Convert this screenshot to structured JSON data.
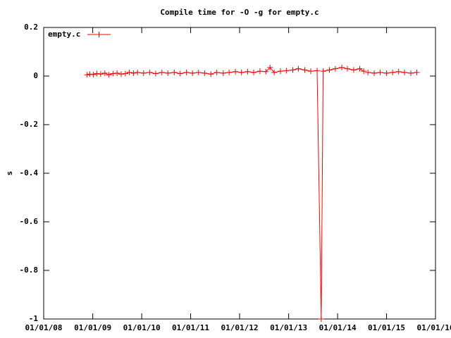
{
  "chart_data": {
    "type": "line",
    "title": "Compile time for -O -g for empty.c",
    "y_label": "s",
    "x": [
      "11/20/08",
      "12/10/08",
      "01/05/09",
      "02/01/09",
      "03/01/09",
      "04/01/09",
      "05/01/09",
      "06/01/09",
      "07/01/09",
      "08/01/09",
      "09/01/09",
      "10/01/09",
      "11/01/09",
      "12/01/09",
      "01/15/10",
      "03/01/10",
      "04/15/10",
      "06/01/10",
      "07/15/10",
      "09/01/10",
      "10/15/10",
      "12/01/10",
      "01/15/11",
      "03/01/11",
      "04/15/11",
      "06/01/11",
      "07/15/11",
      "09/01/11",
      "10/15/11",
      "12/01/11",
      "01/15/12",
      "03/01/12",
      "04/15/12",
      "06/01/12",
      "07/15/12",
      "08/15/12",
      "09/15/12",
      "11/01/12",
      "12/15/12",
      "02/01/13",
      "03/15/13",
      "05/01/13",
      "06/15/13",
      "08/01/13",
      "09/01/13",
      "09/15/13",
      "11/01/13",
      "12/15/13",
      "02/01/14",
      "03/15/14",
      "05/01/14",
      "06/15/14",
      "07/15/14",
      "08/01/14",
      "08/15/14",
      "10/01/14",
      "11/15/14",
      "01/01/15",
      "02/15/15",
      "04/01/15",
      "05/15/15",
      "07/01/15",
      "08/15/15"
    ],
    "series": [
      {
        "name": "empty.c",
        "color": "#ff0000",
        "values": [
          0.005,
          0.008,
          0.006,
          0.01,
          0.008,
          0.012,
          0.005,
          0.01,
          0.012,
          0.008,
          0.01,
          0.015,
          0.012,
          0.015,
          0.012,
          0.015,
          0.01,
          0.015,
          0.012,
          0.015,
          0.01,
          0.015,
          0.012,
          0.015,
          0.012,
          0.008,
          0.015,
          0.012,
          0.015,
          0.018,
          0.015,
          0.018,
          0.015,
          0.02,
          0.018,
          0.035,
          0.015,
          0.02,
          0.022,
          0.025,
          0.03,
          0.025,
          0.02,
          0.022,
          -1,
          0.02,
          0.025,
          0.03,
          0.035,
          0.03,
          0.025,
          0.03,
          0.02,
          null,
          0.015,
          0.012,
          0.015,
          0.012,
          0.015,
          0.018,
          0.015,
          0.012,
          0.015
        ]
      }
    ],
    "xlim": [
      "01/01/08",
      "01/01/16"
    ],
    "xticks": [
      "01/01/08",
      "01/01/09",
      "01/01/10",
      "01/01/11",
      "01/01/12",
      "01/01/13",
      "01/01/14",
      "01/01/15",
      "01/01/16"
    ],
    "ylim": [
      -1,
      0.2
    ],
    "yticks": [
      -1,
      -0.8,
      -0.6,
      -0.4,
      -0.2,
      0,
      0.2
    ],
    "legend": "top-left"
  }
}
